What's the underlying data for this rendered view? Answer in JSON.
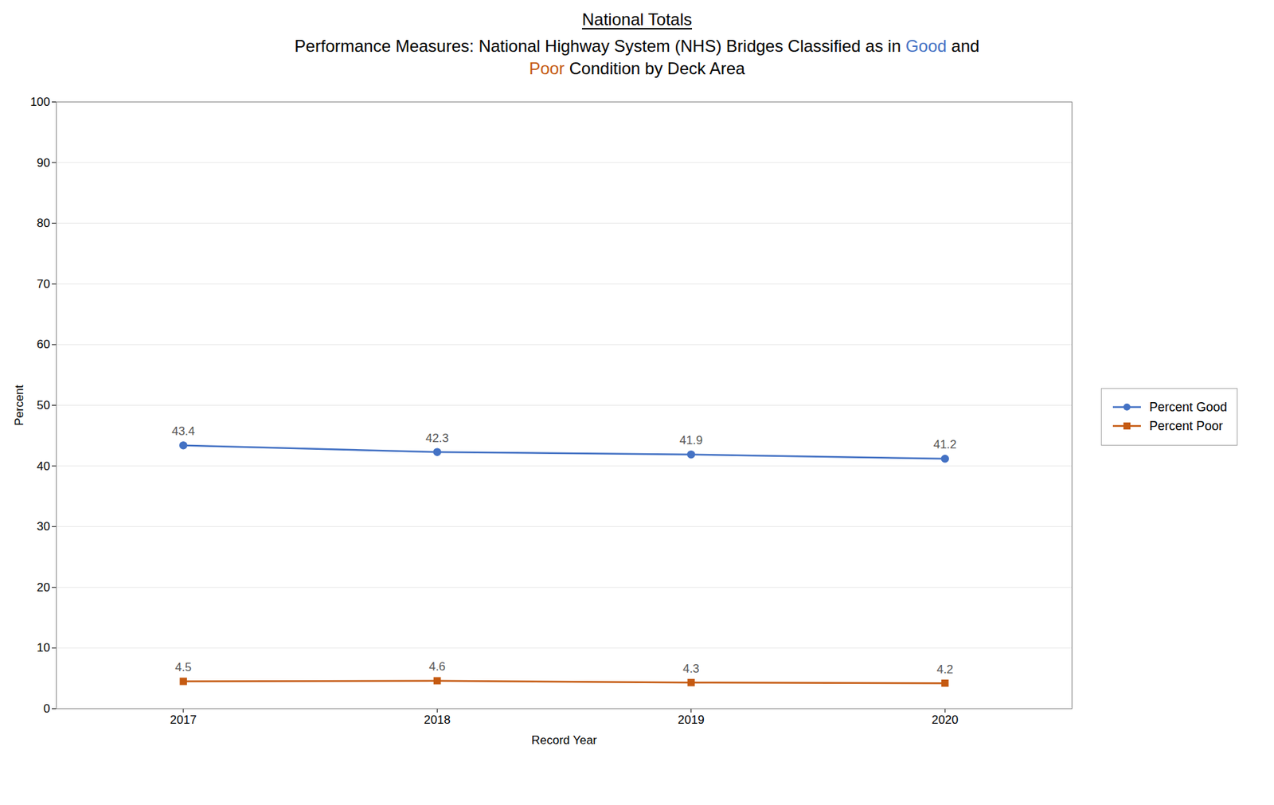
{
  "chart_data": {
    "type": "line",
    "title": "National Totals",
    "subtitle": "Performance Measures: National Highway System (NHS) Bridges Classified as in Good and Poor Condition by Deck Area",
    "x_label": "Record Year",
    "y_label": "Percent",
    "x": [
      2017,
      2018,
      2019,
      2020
    ],
    "series": [
      {
        "name": "Percent Good",
        "color": "#4472C4",
        "marker": "circle",
        "values": [
          43.4,
          42.3,
          41.9,
          41.2
        ]
      },
      {
        "name": "Percent Poor",
        "color": "#C55A11",
        "marker": "square",
        "values": [
          4.5,
          4.6,
          4.3,
          4.2
        ]
      }
    ],
    "xlim": [
      2016.5,
      2020.5
    ],
    "xticks": [
      2017,
      2018,
      2019,
      2020
    ],
    "ylim": [
      0,
      100
    ],
    "yticks": [
      0,
      10,
      20,
      30,
      40,
      50,
      60,
      70,
      80,
      90,
      100
    ],
    "grid": true,
    "legend": "right",
    "data_labels": true
  }
}
